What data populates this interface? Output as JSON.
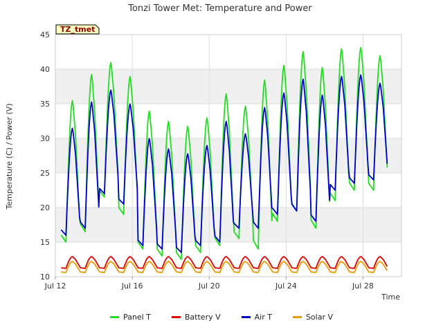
{
  "chart_data": {
    "type": "line",
    "title": "Tonzi Tower Met: Temperature and Power",
    "xlabel": "Time",
    "ylabel": "Temperature (C) / Power (V)",
    "badge": "TZ_tmet",
    "ylim": [
      10,
      45
    ],
    "yticks": [
      10,
      15,
      20,
      25,
      30,
      35,
      40,
      45
    ],
    "xlim": [
      12,
      30
    ],
    "xticks": [
      {
        "value": 12,
        "label": "Jul 12"
      },
      {
        "value": 16,
        "label": "Jul 16"
      },
      {
        "value": 20,
        "label": "Jul 20"
      },
      {
        "value": 24,
        "label": "Jul 24"
      },
      {
        "value": 28,
        "label": "Jul 28"
      }
    ],
    "day_start": 12.3,
    "series": [
      {
        "name": "Panel T",
        "color": "#22dd22",
        "daily_min": [
          15,
          16.5,
          21.5,
          19,
          14,
          13,
          12.5,
          13.5,
          14.5,
          15.5,
          14,
          18,
          19.5,
          17,
          21,
          22.5,
          22.5
        ],
        "daily_max": [
          35.5,
          39.3,
          41,
          39,
          34,
          32.5,
          31.8,
          33,
          36.5,
          34.7,
          38.5,
          40.6,
          42.6,
          40.3,
          43,
          43.2,
          42
        ]
      },
      {
        "name": "Battery V",
        "color": "#dd0000",
        "daily_min": [
          11.2,
          11.2,
          11.2,
          11.2,
          11.2,
          11.2,
          11.2,
          11.2,
          11.2,
          11.2,
          11.2,
          11.2,
          11.2,
          11.2,
          11.2,
          11.2,
          11.2
        ],
        "daily_max": [
          12.9,
          12.9,
          12.9,
          12.9,
          12.9,
          12.9,
          12.9,
          12.9,
          12.9,
          12.9,
          12.9,
          12.9,
          12.9,
          12.9,
          12.9,
          12.9,
          12.9
        ]
      },
      {
        "name": "Air T",
        "color": "#0000cc",
        "daily_min": [
          16,
          17,
          22,
          20.5,
          14.5,
          14,
          13.5,
          14.5,
          15,
          17,
          17,
          19,
          19.5,
          18,
          22.5,
          23.5,
          24
        ]
      },
      {
        "name": "Solar V",
        "color": "#ee9900",
        "daily_min": [
          10.6,
          10.6,
          10.6,
          10.6,
          10.6,
          10.6,
          10.6,
          10.6,
          10.6,
          10.6,
          10.6,
          10.6,
          10.6,
          10.6,
          10.6,
          10.6,
          10.6
        ],
        "daily_max": [
          12.2,
          12.2,
          12.2,
          12.2,
          12.2,
          12.2,
          12.2,
          12.2,
          12.2,
          12.2,
          12.2,
          12.2,
          12.2,
          12.2,
          12.2,
          12.2,
          12.2
        ]
      }
    ]
  }
}
